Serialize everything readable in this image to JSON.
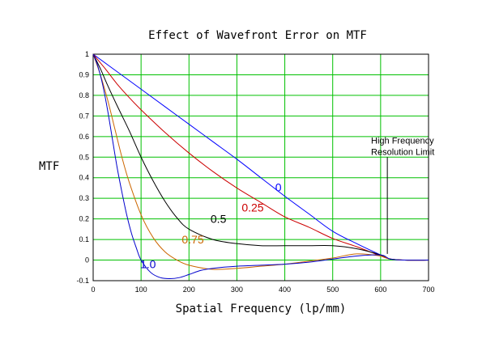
{
  "chart_data": {
    "type": "line",
    "title": "Effect of Wavefront Error on MTF",
    "xlabel": "Spatial Frequency (lp/mm)",
    "ylabel": "MTF",
    "xlim": [
      0,
      700
    ],
    "ylim": [
      -0.1,
      1
    ],
    "xticks": [
      0,
      100,
      200,
      300,
      400,
      500,
      600,
      700
    ],
    "yticks": [
      -0.1,
      0,
      0.1,
      0.2,
      0.3,
      0.4,
      0.5,
      0.6,
      0.7,
      0.8,
      0.9,
      1
    ],
    "ytick_labels": [
      "-0.1",
      "0",
      "0.1",
      "0.2",
      "0.3",
      "0.4",
      "0.5",
      "0.6",
      "0.7",
      "0.8",
      "0.9",
      "1"
    ],
    "grid": true,
    "grid_color": "#00c000",
    "series": [
      {
        "name": "0",
        "color": "#0000ff",
        "label_x": 380,
        "label_y": 0.335,
        "x": [
          0,
          50,
          100,
          150,
          200,
          250,
          300,
          350,
          400,
          450,
          500,
          550,
          600,
          620,
          650,
          700
        ],
        "y": [
          1.0,
          0.915,
          0.83,
          0.745,
          0.66,
          0.575,
          0.49,
          0.4,
          0.31,
          0.225,
          0.14,
          0.08,
          0.025,
          0.005,
          0,
          0
        ]
      },
      {
        "name": "0.25",
        "color": "#cc0000",
        "label_x": 310,
        "label_y": 0.235,
        "x": [
          0,
          25,
          50,
          75,
          100,
          150,
          200,
          250,
          300,
          350,
          400,
          450,
          500,
          550,
          600,
          620,
          650,
          700
        ],
        "y": [
          1.0,
          0.93,
          0.855,
          0.79,
          0.73,
          0.62,
          0.52,
          0.43,
          0.35,
          0.28,
          0.21,
          0.16,
          0.105,
          0.065,
          0.02,
          0.005,
          0,
          0
        ]
      },
      {
        "name": "0.5",
        "color": "#000000",
        "label_x": 245,
        "label_y": 0.18,
        "x": [
          0,
          15,
          30,
          50,
          75,
          100,
          125,
          150,
          175,
          200,
          250,
          300,
          350,
          400,
          450,
          500,
          550,
          600,
          620,
          650,
          700
        ],
        "y": [
          1.0,
          0.93,
          0.85,
          0.75,
          0.63,
          0.5,
          0.385,
          0.285,
          0.205,
          0.15,
          0.1,
          0.08,
          0.07,
          0.07,
          0.07,
          0.07,
          0.055,
          0.025,
          0.005,
          0,
          0
        ]
      },
      {
        "name": "0.75",
        "color": "#cc6600",
        "label_x": 185,
        "label_y": 0.08,
        "x": [
          0,
          15,
          30,
          45,
          60,
          75,
          100,
          125,
          150,
          175,
          200,
          250,
          300,
          350,
          400,
          450,
          500,
          550,
          600,
          620,
          650,
          700
        ],
        "y": [
          1.0,
          0.9,
          0.78,
          0.64,
          0.5,
          0.38,
          0.22,
          0.11,
          0.04,
          0.0,
          -0.025,
          -0.045,
          -0.04,
          -0.03,
          -0.02,
          -0.005,
          0.01,
          0.03,
          0.02,
          0.005,
          0,
          0
        ]
      },
      {
        "name": "1.0",
        "color": "#0000cc",
        "label_x": 98,
        "label_y": -0.04,
        "x": [
          0,
          10,
          20,
          30,
          40,
          50,
          60,
          70,
          80,
          90,
          100,
          120,
          140,
          160,
          180,
          200,
          225,
          250,
          300,
          350,
          400,
          450,
          500,
          550,
          600,
          620,
          650,
          700
        ],
        "y": [
          1.0,
          0.94,
          0.85,
          0.73,
          0.59,
          0.45,
          0.33,
          0.22,
          0.13,
          0.06,
          0.0,
          -0.06,
          -0.085,
          -0.09,
          -0.085,
          -0.07,
          -0.05,
          -0.04,
          -0.03,
          -0.025,
          -0.02,
          -0.01,
          0.005,
          0.02,
          0.025,
          0.005,
          0,
          0
        ]
      }
    ],
    "annotations": [
      {
        "text": "High Frequency",
        "x": 580,
        "y": 0.565
      },
      {
        "text": "Resolution Limit",
        "x": 580,
        "y": 0.51
      }
    ],
    "marker_line": {
      "x": 614,
      "y_top": 0.5,
      "y_bottom": 0.03
    }
  }
}
